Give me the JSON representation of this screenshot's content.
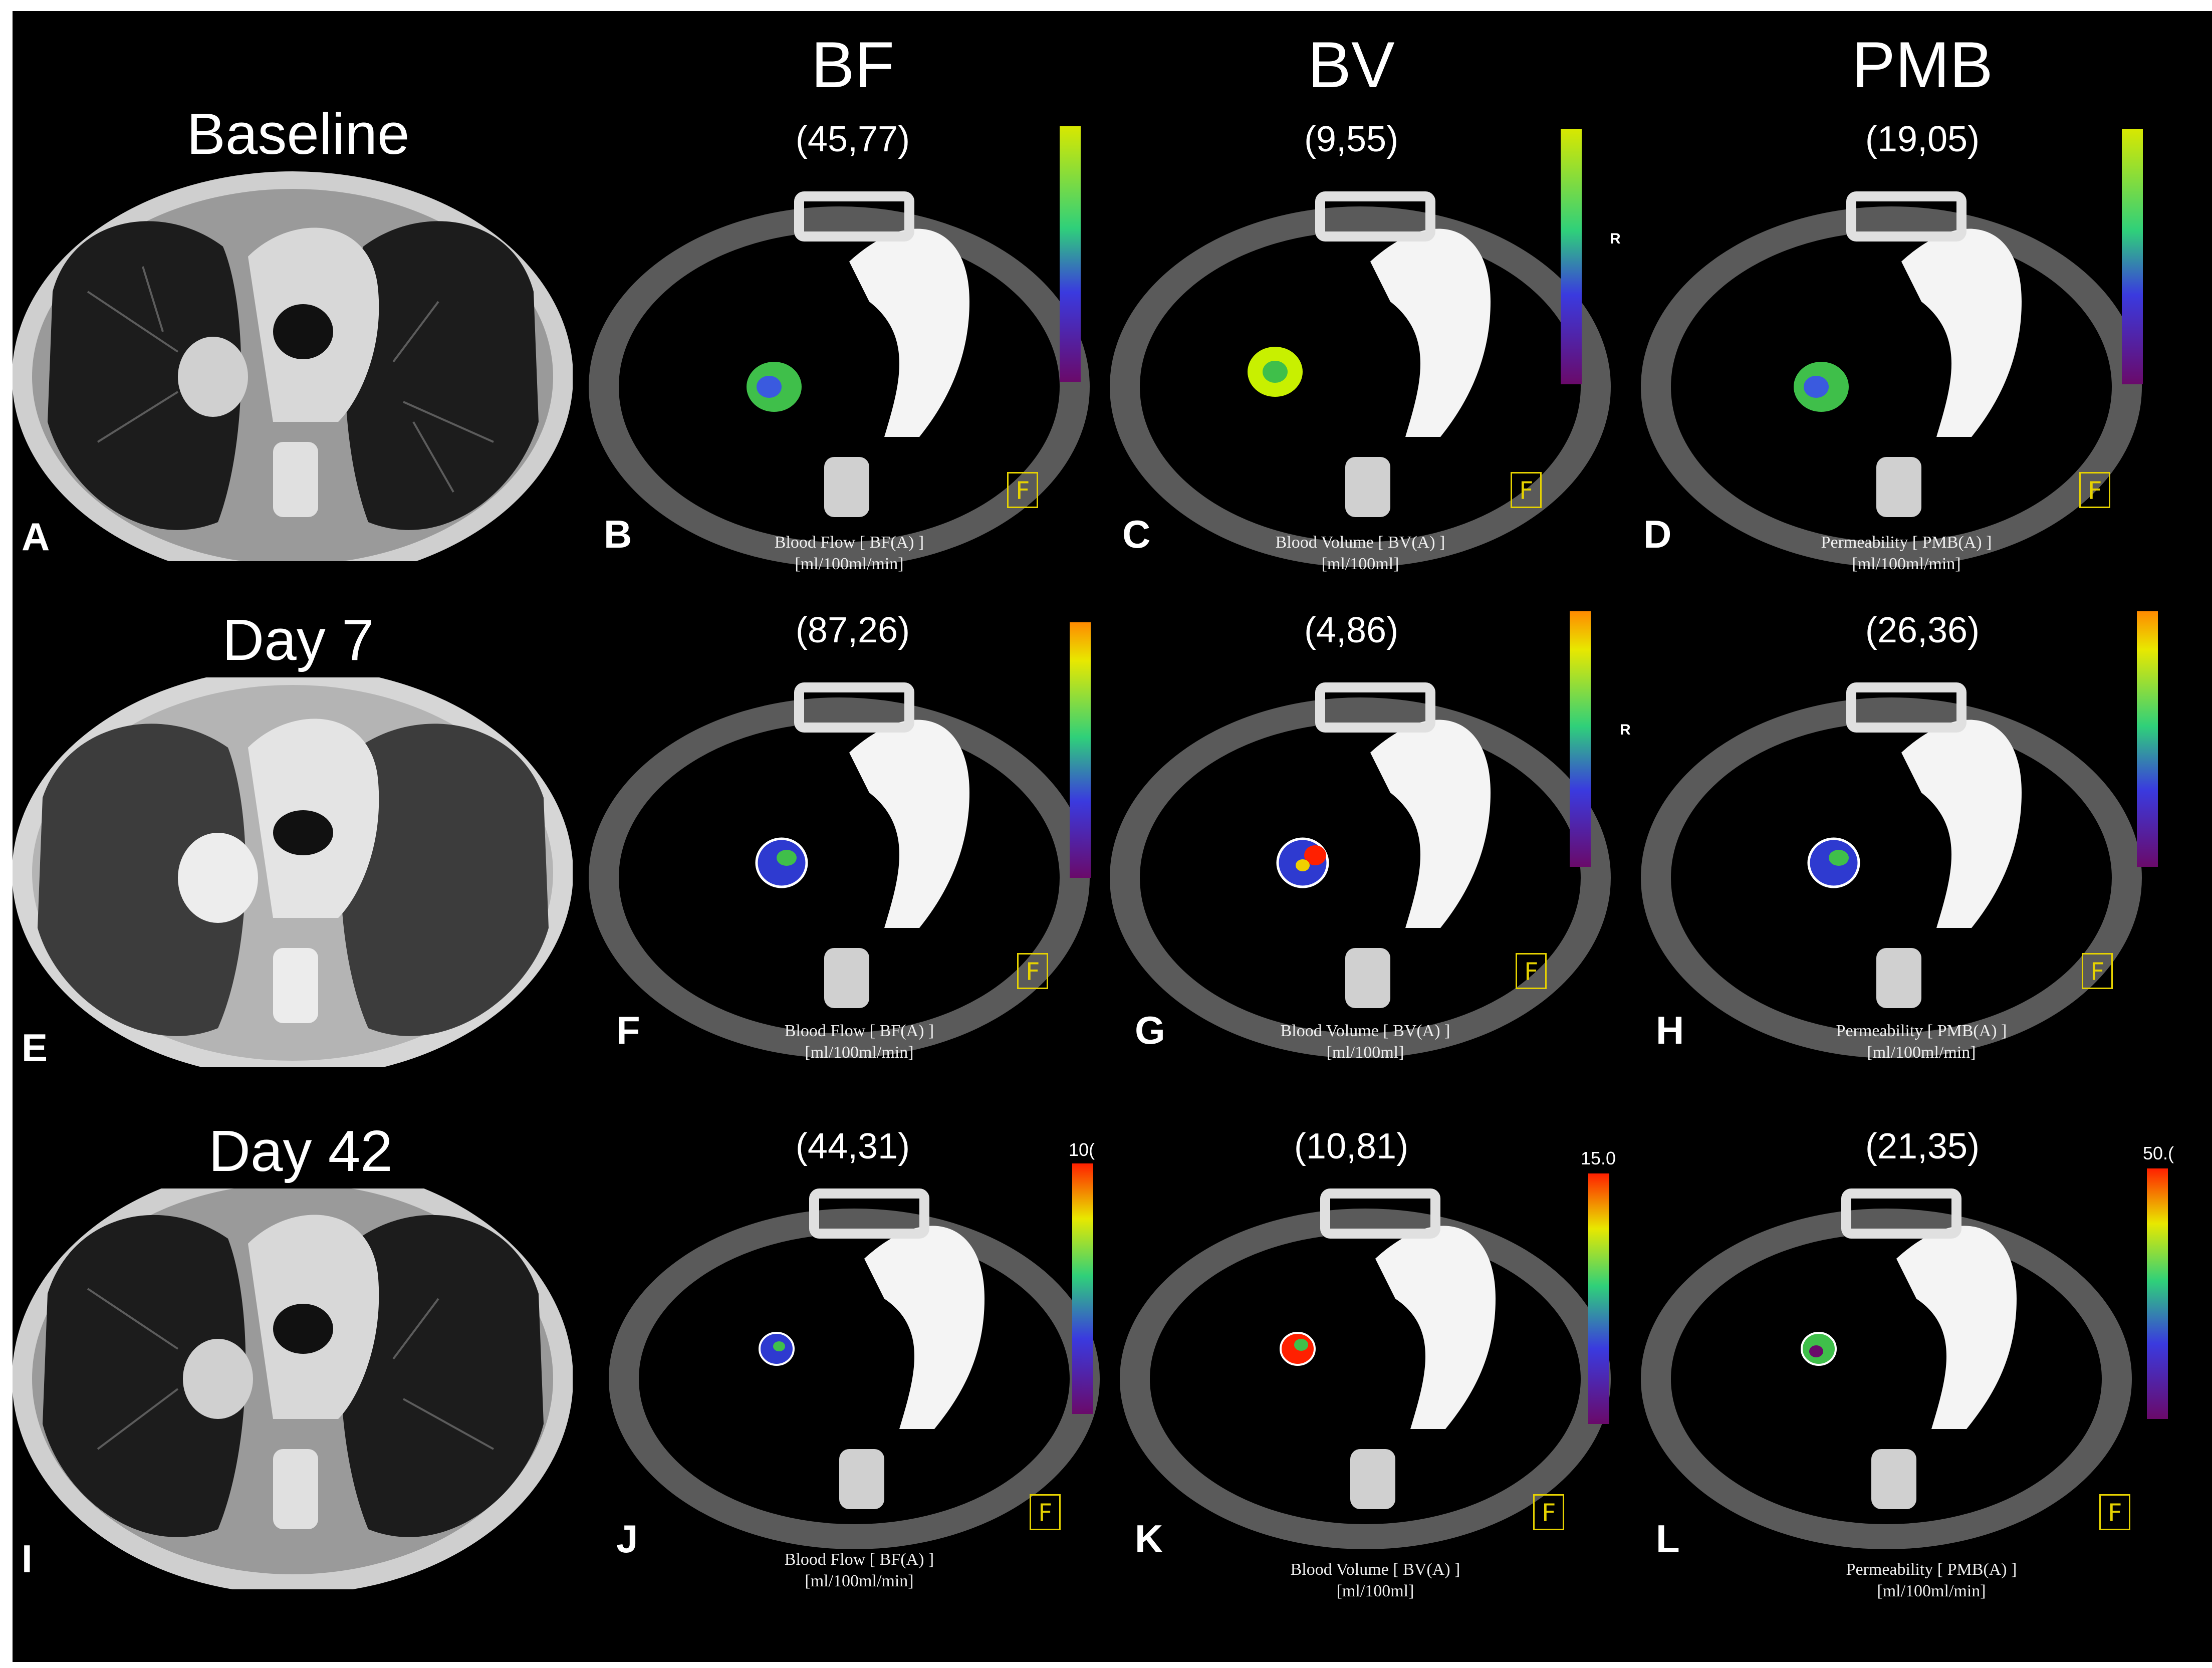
{
  "columns": [
    "BF",
    "BV",
    "PMB"
  ],
  "timepoints": [
    "Baseline",
    "Day 7",
    "Day 42"
  ],
  "ct_letters": [
    "A",
    "E",
    "I"
  ],
  "rows": [
    {
      "maps": [
        {
          "letter": "B",
          "value": "(45,77)",
          "caption1": "Blood Flow [ BF(A) ]",
          "caption2": "[ml/100ml/min]",
          "bar_max": ""
        },
        {
          "letter": "C",
          "value": "(9,55)",
          "caption1": "Blood Volume [ BV(A) ]",
          "caption2": "[ml/100ml]",
          "bar_max": ""
        },
        {
          "letter": "D",
          "value": "(19,05)",
          "caption1": "Permeability [ PMB(A) ]",
          "caption2": "[ml/100ml/min]",
          "bar_max": ""
        }
      ]
    },
    {
      "maps": [
        {
          "letter": "F",
          "value": "(87,26)",
          "caption1": "Blood Flow [ BF(A) ]",
          "caption2": "[ml/100ml/min]",
          "bar_max": ""
        },
        {
          "letter": "G",
          "value": "(4,86)",
          "caption1": "Blood Volume [ BV(A) ]",
          "caption2": "[ml/100ml]",
          "bar_max": ""
        },
        {
          "letter": "H",
          "value": "(26,36)",
          "caption1": "Permeability [ PMB(A) ]",
          "caption2": "[ml/100ml/min]",
          "bar_max": ""
        }
      ]
    },
    {
      "maps": [
        {
          "letter": "J",
          "value": "(44,31)",
          "caption1": "Blood Flow [ BF(A) ]",
          "caption2": "[ml/100ml/min]",
          "bar_max": "10("
        },
        {
          "letter": "K",
          "value": "(10,81)",
          "caption1": "Blood Volume [ BV(A) ]",
          "caption2": "[ml/100ml]",
          "bar_max": "15.0"
        },
        {
          "letter": "L",
          "value": "(21,35)",
          "caption1": "Permeability [ PMB(A) ]",
          "caption2": "[ml/100ml/min]",
          "bar_max": "50.("
        }
      ]
    }
  ],
  "orientation_mark": "R",
  "frame_mark": "F",
  "colors": {
    "background": "#000000",
    "lung": "#1a1a1a",
    "soft_tissue": "#bdbdbd",
    "colorbar_stops": [
      "#6a0a6a",
      "#3a3adf",
      "#2fd07a",
      "#c8f000",
      "#f0d000",
      "#ff2000"
    ]
  }
}
